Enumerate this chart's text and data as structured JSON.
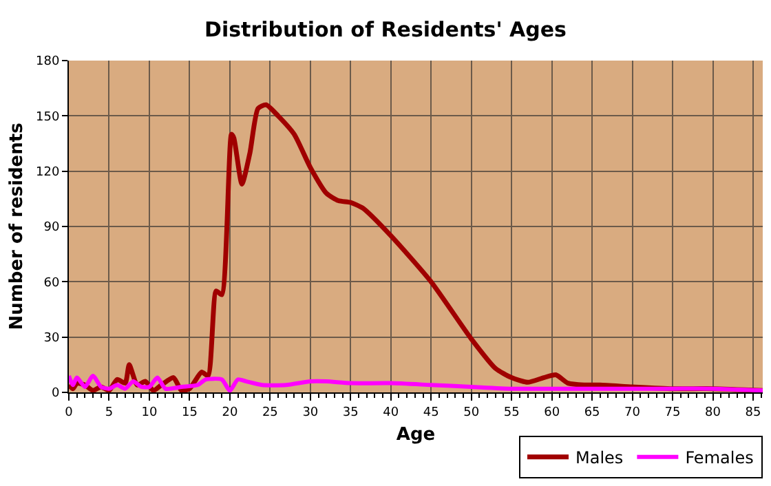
{
  "chart_data": {
    "type": "line",
    "title": "Distribution of Residents' Ages",
    "xlabel": "Age",
    "ylabel": "Number of residents",
    "xlim": [
      0,
      86.2
    ],
    "xticks": [
      0,
      5,
      10,
      15,
      20,
      25,
      30,
      35,
      40,
      45,
      50,
      55,
      60,
      65,
      70,
      75,
      80,
      85
    ],
    "ylim": [
      0,
      180
    ],
    "yticks": [
      0,
      30,
      60,
      90,
      120,
      150,
      180
    ],
    "grid": true,
    "legend": "bottom right",
    "marker": "none",
    "line_style": "solid",
    "series": [
      {
        "name": "Males",
        "color": "#a00000",
        "x": [
          0,
          0.5,
          1,
          2,
          3,
          4,
          5,
          6,
          7,
          7.5,
          8.5,
          9.5,
          10.5,
          11.5,
          13,
          14,
          15,
          16.5,
          17.3,
          18.3,
          19,
          20.2,
          20.5,
          21.5,
          22.5,
          23.5,
          24.5,
          26,
          28,
          30,
          32,
          33.5,
          35,
          36.5,
          40,
          45,
          50,
          53,
          55,
          57,
          59,
          60.5,
          62,
          64,
          66,
          70,
          75,
          80,
          86.2
        ],
        "values": [
          4,
          2,
          5,
          4,
          1,
          3,
          1,
          7,
          5,
          15,
          4,
          6,
          1,
          4,
          8,
          1,
          2,
          11,
          9,
          55,
          53,
          140,
          138,
          113,
          130,
          154,
          156,
          150,
          140,
          122,
          108,
          104,
          103,
          100,
          85,
          60,
          29,
          13,
          8,
          5.5,
          8,
          9.5,
          5,
          4,
          4,
          3,
          2,
          2,
          1
        ]
      },
      {
        "name": "Females",
        "color": "#ff00ff",
        "x": [
          0,
          0.5,
          1,
          2,
          3,
          4,
          5,
          6,
          7,
          8,
          9,
          10,
          11,
          12,
          14,
          16,
          17,
          19,
          20,
          21,
          22,
          24,
          27,
          30,
          32,
          35,
          40,
          45,
          50,
          55,
          60,
          65,
          70,
          75,
          80,
          86.2
        ],
        "values": [
          9,
          4,
          8,
          3,
          9,
          3,
          2,
          4,
          2,
          6,
          3,
          3,
          8,
          2,
          3,
          4,
          7,
          7,
          1,
          7,
          6,
          4,
          4,
          6,
          6,
          5,
          5,
          4,
          3,
          2,
          2,
          2,
          2,
          2,
          2,
          1
        ]
      }
    ]
  }
}
